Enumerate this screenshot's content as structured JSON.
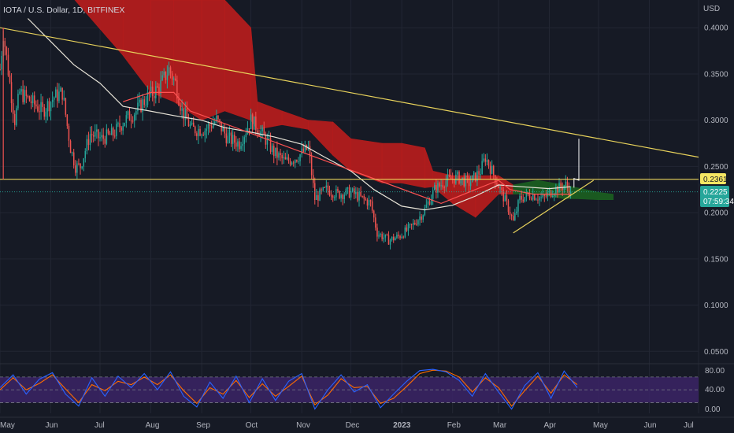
{
  "header": {
    "title": "IOTA / U.S. Dollar, 1D, BITFINEX"
  },
  "price_axis": {
    "unit": "USD",
    "ticks": [
      "0.4000",
      "0.3500",
      "0.3000",
      "0.2500",
      "0.2000",
      "0.1500",
      "0.1000",
      "0.0500"
    ]
  },
  "badges": {
    "level": "0.2361",
    "price": "0.2225",
    "countdown": "07:59:34"
  },
  "oscillator_axis": {
    "ticks": [
      "80.00",
      "40.00",
      "0.00"
    ]
  },
  "time_axis": {
    "labels": [
      "May",
      "Jun",
      "Jul",
      "Aug",
      "Sep",
      "Oct",
      "Nov",
      "Dec",
      "2023",
      "Feb",
      "Mar",
      "Apr",
      "May",
      "Jun",
      "Jul"
    ]
  },
  "colors": {
    "background": "#161a25",
    "grid": "#222633",
    "candle_up": "#26a69a",
    "candle_down": "#ef5350",
    "cloud_bearish": "#b71c1c",
    "cloud_bullish": "#1b5e20",
    "trendline": "#e8d25b",
    "moving_average": "#e8e4d8",
    "base_line": "#ff5252",
    "stoch_k": "#2962ff",
    "stoch_d": "#ff6d00",
    "stoch_band": "#3b2466",
    "level_badge": "#f5e663",
    "price_badge": "#26a69a"
  },
  "chart_data": {
    "type": "candlestick",
    "symbol": "IOTA / U.S. Dollar",
    "interval": "1D",
    "exchange": "BITFINEX",
    "ylim": [
      0.04,
      0.43
    ],
    "y_ticks": [
      0.4,
      0.35,
      0.3,
      0.25,
      0.2,
      0.15,
      0.1,
      0.05
    ],
    "x_range": [
      "2022-05-01",
      "2023-07-01"
    ],
    "last_price": 0.2225,
    "horizontal_level": 0.2361,
    "close_path": [
      [
        "2022-05-01",
        0.355
      ],
      [
        "2022-05-03",
        0.395
      ],
      [
        "2022-05-07",
        0.34
      ],
      [
        "2022-05-10",
        0.3
      ],
      [
        "2022-05-13",
        0.33
      ],
      [
        "2022-05-20",
        0.32
      ],
      [
        "2022-05-27",
        0.31
      ],
      [
        "2022-06-03",
        0.325
      ],
      [
        "2022-06-08",
        0.33
      ],
      [
        "2022-06-13",
        0.27
      ],
      [
        "2022-06-16",
        0.25
      ],
      [
        "2022-06-19",
        0.25
      ],
      [
        "2022-06-25",
        0.285
      ],
      [
        "2022-07-02",
        0.28
      ],
      [
        "2022-07-09",
        0.285
      ],
      [
        "2022-07-16",
        0.3
      ],
      [
        "2022-07-23",
        0.31
      ],
      [
        "2022-07-30",
        0.325
      ],
      [
        "2022-08-06",
        0.335
      ],
      [
        "2022-08-12",
        0.355
      ],
      [
        "2022-08-16",
        0.34
      ],
      [
        "2022-08-20",
        0.31
      ],
      [
        "2022-08-26",
        0.29
      ],
      [
        "2022-09-03",
        0.29
      ],
      [
        "2022-09-10",
        0.3
      ],
      [
        "2022-09-17",
        0.28
      ],
      [
        "2022-09-24",
        0.275
      ],
      [
        "2022-10-01",
        0.3
      ],
      [
        "2022-10-08",
        0.285
      ],
      [
        "2022-10-15",
        0.265
      ],
      [
        "2022-10-22",
        0.255
      ],
      [
        "2022-10-29",
        0.26
      ],
      [
        "2022-11-05",
        0.27
      ],
      [
        "2022-11-09",
        0.215
      ],
      [
        "2022-11-16",
        0.225
      ],
      [
        "2022-11-23",
        0.22
      ],
      [
        "2022-12-01",
        0.222
      ],
      [
        "2022-12-08",
        0.215
      ],
      [
        "2022-12-13",
        0.21
      ],
      [
        "2022-12-17",
        0.178
      ],
      [
        "2022-12-24",
        0.17
      ],
      [
        "2022-12-31",
        0.175
      ],
      [
        "2023-01-07",
        0.185
      ],
      [
        "2023-01-14",
        0.2
      ],
      [
        "2023-01-21",
        0.225
      ],
      [
        "2023-01-28",
        0.235
      ],
      [
        "2023-02-04",
        0.238
      ],
      [
        "2023-02-11",
        0.232
      ],
      [
        "2023-02-18",
        0.245
      ],
      [
        "2023-02-21",
        0.26
      ],
      [
        "2023-02-25",
        0.245
      ],
      [
        "2023-03-02",
        0.225
      ],
      [
        "2023-03-07",
        0.205
      ],
      [
        "2023-03-10",
        0.19
      ],
      [
        "2023-03-14",
        0.215
      ],
      [
        "2023-03-21",
        0.22
      ],
      [
        "2023-03-28",
        0.215
      ],
      [
        "2023-04-04",
        0.225
      ],
      [
        "2023-04-11",
        0.23
      ],
      [
        "2023-04-14",
        0.2225
      ]
    ],
    "moving_average": [
      [
        "2022-05-18",
        0.41
      ],
      [
        "2022-06-01",
        0.385
      ],
      [
        "2022-06-15",
        0.36
      ],
      [
        "2022-07-01",
        0.34
      ],
      [
        "2022-07-15",
        0.315
      ],
      [
        "2022-07-31",
        0.31
      ],
      [
        "2022-08-15",
        0.305
      ],
      [
        "2022-09-01",
        0.3
      ],
      [
        "2022-09-15",
        0.292
      ],
      [
        "2022-10-01",
        0.287
      ],
      [
        "2022-10-15",
        0.282
      ],
      [
        "2022-11-01",
        0.274
      ],
      [
        "2022-11-15",
        0.26
      ],
      [
        "2022-12-01",
        0.245
      ],
      [
        "2022-12-15",
        0.225
      ],
      [
        "2023-01-01",
        0.207
      ],
      [
        "2023-01-15",
        0.203
      ],
      [
        "2023-02-01",
        0.208
      ],
      [
        "2023-02-15",
        0.218
      ],
      [
        "2023-03-01",
        0.23
      ],
      [
        "2023-03-15",
        0.228
      ],
      [
        "2023-04-01",
        0.226
      ],
      [
        "2023-04-14",
        0.228
      ]
    ],
    "base_line": [
      [
        "2022-07-15",
        0.32
      ],
      [
        "2022-08-01",
        0.33
      ],
      [
        "2022-08-15",
        0.33
      ],
      [
        "2022-08-25",
        0.31
      ],
      [
        "2023-01-25",
        0.21
      ],
      [
        "2023-02-15",
        0.225
      ],
      [
        "2023-03-01",
        0.235
      ],
      [
        "2023-03-08",
        0.225
      ],
      [
        "2023-03-22",
        0.22
      ],
      [
        "2023-04-14",
        0.22
      ]
    ],
    "cloud_upper": [
      [
        "2022-06-01",
        0.46
      ],
      [
        "2022-07-15",
        0.44
      ],
      [
        "2022-08-01",
        0.43
      ],
      [
        "2022-08-15",
        0.43
      ],
      [
        "2022-09-01",
        0.43
      ],
      [
        "2022-09-15",
        0.43
      ],
      [
        "2022-10-01",
        0.4
      ],
      [
        "2022-10-05",
        0.32
      ],
      [
        "2022-10-20",
        0.31
      ],
      [
        "2022-11-05",
        0.3
      ],
      [
        "2022-11-20",
        0.298
      ],
      [
        "2022-12-01",
        0.28
      ],
      [
        "2022-12-20",
        0.275
      ],
      [
        "2023-01-01",
        0.275
      ],
      [
        "2023-01-15",
        0.27
      ],
      [
        "2023-01-20",
        0.245
      ],
      [
        "2023-02-01",
        0.24
      ],
      [
        "2023-02-15",
        0.24
      ],
      [
        "2023-03-01",
        0.24
      ],
      [
        "2023-03-10",
        0.23
      ],
      [
        "2023-03-25",
        0.235
      ],
      [
        "2023-04-10",
        0.23
      ],
      [
        "2023-04-18",
        0.227
      ],
      [
        "2023-05-01",
        0.222
      ],
      [
        "2023-05-10",
        0.22
      ]
    ],
    "cloud_lower": [
      [
        "2022-06-01",
        0.46
      ],
      [
        "2022-07-15",
        0.37
      ],
      [
        "2022-08-01",
        0.33
      ],
      [
        "2022-08-15",
        0.32
      ],
      [
        "2022-09-01",
        0.3
      ],
      [
        "2022-09-15",
        0.31
      ],
      [
        "2022-10-01",
        0.3
      ],
      [
        "2022-10-05",
        0.29
      ],
      [
        "2022-10-20",
        0.295
      ],
      [
        "2022-11-05",
        0.29
      ],
      [
        "2022-11-20",
        0.262
      ],
      [
        "2022-12-01",
        0.245
      ],
      [
        "2022-12-20",
        0.232
      ],
      [
        "2023-01-01",
        0.232
      ],
      [
        "2023-01-15",
        0.227
      ],
      [
        "2023-01-20",
        0.228
      ],
      [
        "2023-02-01",
        0.21
      ],
      [
        "2023-02-15",
        0.195
      ],
      [
        "2023-03-01",
        0.22
      ],
      [
        "2023-03-10",
        0.22
      ],
      [
        "2023-03-25",
        0.22
      ],
      [
        "2023-04-10",
        0.215
      ],
      [
        "2023-04-18",
        0.215
      ],
      [
        "2023-05-01",
        0.214
      ],
      [
        "2023-05-10",
        0.214
      ]
    ],
    "cloud_bullish_from": "2023-03-10",
    "descending_trendline": [
      [
        "2022-05-01",
        0.4
      ],
      [
        "2023-07-01",
        0.26
      ]
    ],
    "rising_trendline": [
      [
        "2023-03-10",
        0.178
      ],
      [
        "2023-04-28",
        0.235
      ]
    ],
    "projection_marker": [
      [
        "2023-04-16",
        0.227
      ],
      [
        "2023-04-19",
        0.28
      ]
    ],
    "stochastic": {
      "ylim": [
        -5,
        100
      ],
      "upper_band": 80,
      "lower_band": 20,
      "ticks": [
        80,
        40,
        0
      ],
      "k": [
        [
          "2022-05-01",
          55
        ],
        [
          "2022-05-09",
          85
        ],
        [
          "2022-05-17",
          40
        ],
        [
          "2022-05-25",
          75
        ],
        [
          "2022-06-02",
          90
        ],
        [
          "2022-06-10",
          40
        ],
        [
          "2022-06-18",
          12
        ],
        [
          "2022-06-26",
          78
        ],
        [
          "2022-07-04",
          35
        ],
        [
          "2022-07-12",
          82
        ],
        [
          "2022-07-20",
          55
        ],
        [
          "2022-07-28",
          88
        ],
        [
          "2022-08-05",
          50
        ],
        [
          "2022-08-13",
          92
        ],
        [
          "2022-08-21",
          35
        ],
        [
          "2022-08-29",
          10
        ],
        [
          "2022-09-06",
          68
        ],
        [
          "2022-09-14",
          30
        ],
        [
          "2022-09-22",
          82
        ],
        [
          "2022-09-30",
          20
        ],
        [
          "2022-10-08",
          76
        ],
        [
          "2022-10-16",
          25
        ],
        [
          "2022-10-24",
          70
        ],
        [
          "2022-11-01",
          88
        ],
        [
          "2022-11-09",
          5
        ],
        [
          "2022-11-17",
          50
        ],
        [
          "2022-11-25",
          85
        ],
        [
          "2022-12-03",
          45
        ],
        [
          "2022-12-11",
          62
        ],
        [
          "2022-12-19",
          8
        ],
        [
          "2022-12-27",
          40
        ],
        [
          "2023-01-04",
          70
        ],
        [
          "2023-01-12",
          95
        ],
        [
          "2023-01-20",
          98
        ],
        [
          "2023-01-28",
          92
        ],
        [
          "2023-02-05",
          72
        ],
        [
          "2023-02-13",
          35
        ],
        [
          "2023-02-21",
          88
        ],
        [
          "2023-03-01",
          45
        ],
        [
          "2023-03-09",
          5
        ],
        [
          "2023-03-17",
          60
        ],
        [
          "2023-03-25",
          90
        ],
        [
          "2023-04-02",
          30
        ],
        [
          "2023-04-10",
          94
        ],
        [
          "2023-04-18",
          55
        ]
      ],
      "d": [
        [
          "2022-05-01",
          50
        ],
        [
          "2022-05-09",
          78
        ],
        [
          "2022-05-17",
          50
        ],
        [
          "2022-05-25",
          65
        ],
        [
          "2022-06-02",
          85
        ],
        [
          "2022-06-10",
          52
        ],
        [
          "2022-06-18",
          20
        ],
        [
          "2022-06-26",
          62
        ],
        [
          "2022-07-04",
          48
        ],
        [
          "2022-07-12",
          70
        ],
        [
          "2022-07-20",
          62
        ],
        [
          "2022-07-28",
          80
        ],
        [
          "2022-08-05",
          62
        ],
        [
          "2022-08-13",
          85
        ],
        [
          "2022-08-21",
          48
        ],
        [
          "2022-08-29",
          18
        ],
        [
          "2022-09-06",
          55
        ],
        [
          "2022-09-14",
          40
        ],
        [
          "2022-09-22",
          72
        ],
        [
          "2022-09-30",
          32
        ],
        [
          "2022-10-08",
          64
        ],
        [
          "2022-10-16",
          35
        ],
        [
          "2022-10-24",
          58
        ],
        [
          "2022-11-01",
          82
        ],
        [
          "2022-11-09",
          15
        ],
        [
          "2022-11-17",
          38
        ],
        [
          "2022-11-25",
          76
        ],
        [
          "2022-12-03",
          55
        ],
        [
          "2022-12-11",
          58
        ],
        [
          "2022-12-19",
          18
        ],
        [
          "2022-12-27",
          30
        ],
        [
          "2023-01-04",
          58
        ],
        [
          "2023-01-12",
          88
        ],
        [
          "2023-01-20",
          96
        ],
        [
          "2023-01-28",
          94
        ],
        [
          "2023-02-05",
          80
        ],
        [
          "2023-02-13",
          45
        ],
        [
          "2023-02-21",
          78
        ],
        [
          "2023-03-01",
          55
        ],
        [
          "2023-03-09",
          12
        ],
        [
          "2023-03-17",
          48
        ],
        [
          "2023-03-25",
          82
        ],
        [
          "2023-04-02",
          42
        ],
        [
          "2023-04-10",
          85
        ],
        [
          "2023-04-18",
          62
        ]
      ]
    }
  }
}
